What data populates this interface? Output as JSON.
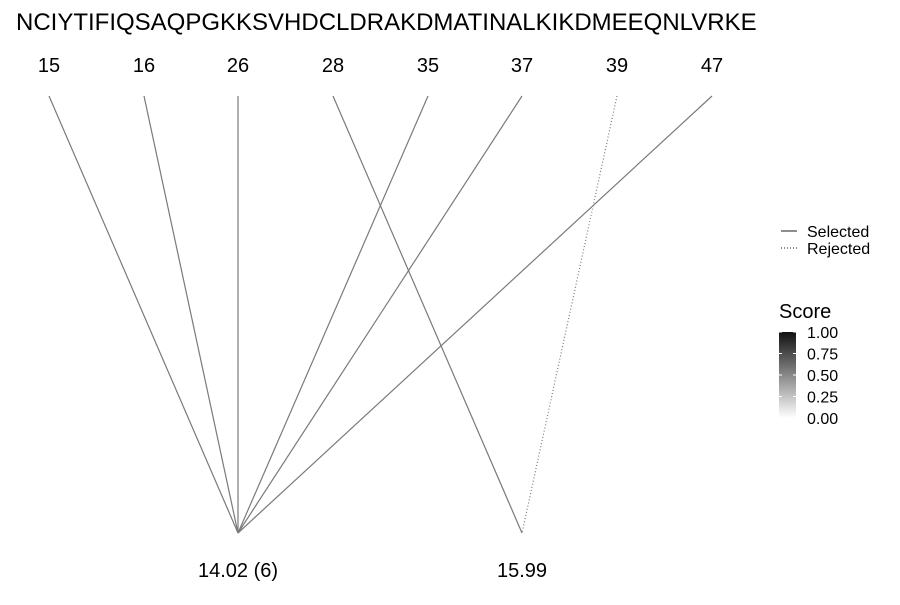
{
  "sequence": "NCIYTIFIQSAQPGKKSVHDCLDRAKDMATINALKIKDMEEQNLVRKE",
  "positions": [
    "15",
    "16",
    "26",
    "28",
    "35",
    "37",
    "39",
    "47"
  ],
  "mass_groups": [
    {
      "label": "14.02 (6)"
    },
    {
      "label": "15.99"
    }
  ],
  "links": [
    {
      "position": "15",
      "target": "14.02 (6)",
      "status": "Selected"
    },
    {
      "position": "16",
      "target": "14.02 (6)",
      "status": "Selected"
    },
    {
      "position": "26",
      "target": "14.02 (6)",
      "status": "Selected"
    },
    {
      "position": "28",
      "target": "15.99",
      "status": "Selected"
    },
    {
      "position": "35",
      "target": "14.02 (6)",
      "status": "Selected"
    },
    {
      "position": "37",
      "target": "14.02 (6)",
      "status": "Selected"
    },
    {
      "position": "39",
      "target": "15.99",
      "status": "Rejected"
    },
    {
      "position": "47",
      "target": "14.02 (6)",
      "status": "Selected"
    }
  ],
  "legend": {
    "linetype": [
      {
        "label": "Selected",
        "style": "solid"
      },
      {
        "label": "Rejected",
        "style": "dotted"
      }
    ],
    "score": {
      "title": "Score",
      "ticks": [
        "1.00",
        "0.75",
        "0.50",
        "0.25",
        "0.00"
      ],
      "gradient_top": "#111111",
      "gradient_bottom": "#ffffff"
    }
  },
  "colors": {
    "line": "#7a7a7a"
  }
}
